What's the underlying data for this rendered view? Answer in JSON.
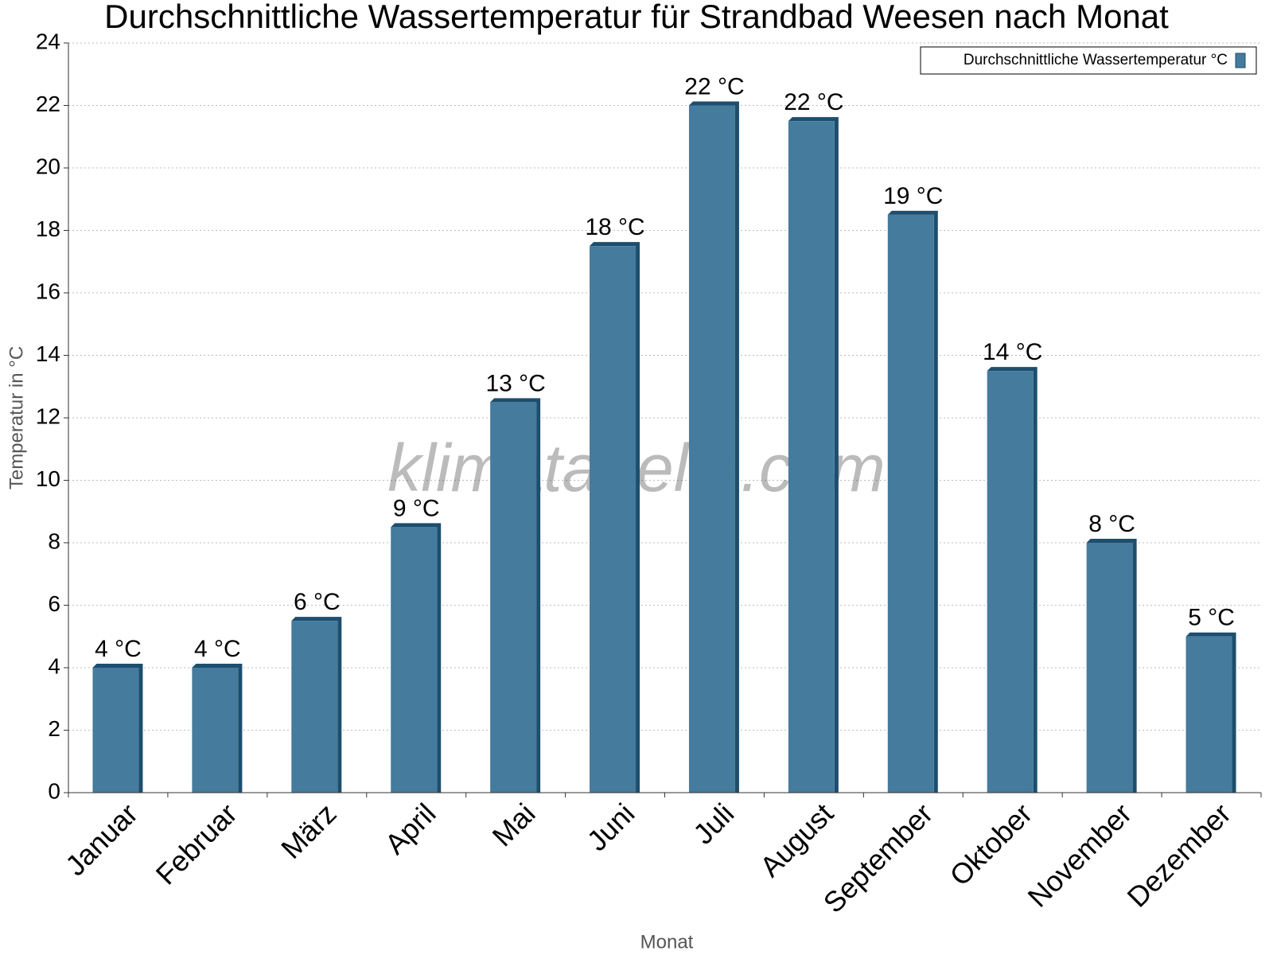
{
  "chart_data": {
    "type": "bar",
    "title": "Durchschnittliche Wassertemperatur für Strandbad Weesen nach Monat",
    "x_label": "Monat",
    "y_label": "Temperatur in °C",
    "watermark": "klimatabelle.com",
    "categories": [
      "Januar",
      "Februar",
      "März",
      "April",
      "Mai",
      "Juni",
      "Juli",
      "August",
      "September",
      "Oktober",
      "November",
      "Dezember"
    ],
    "series": [
      {
        "name": "Durchschnittliche Wassertemperatur °C",
        "color": "#457b9d",
        "values": [
          4,
          4,
          5.5,
          8.5,
          12.5,
          17.5,
          22,
          21.5,
          18.5,
          13.5,
          8,
          5
        ],
        "value_labels": [
          "4 °C",
          "4 °C",
          "6 °C",
          "9 °C",
          "13 °C",
          "18 °C",
          "22 °C",
          "22 °C",
          "19 °C",
          "14 °C",
          "8 °C",
          "5 °C"
        ]
      }
    ],
    "ylim": [
      0,
      24
    ],
    "yticks": [
      0,
      2,
      4,
      6,
      8,
      10,
      12,
      14,
      16,
      18,
      20,
      22,
      24
    ],
    "grid": true,
    "legend": "top-right"
  }
}
